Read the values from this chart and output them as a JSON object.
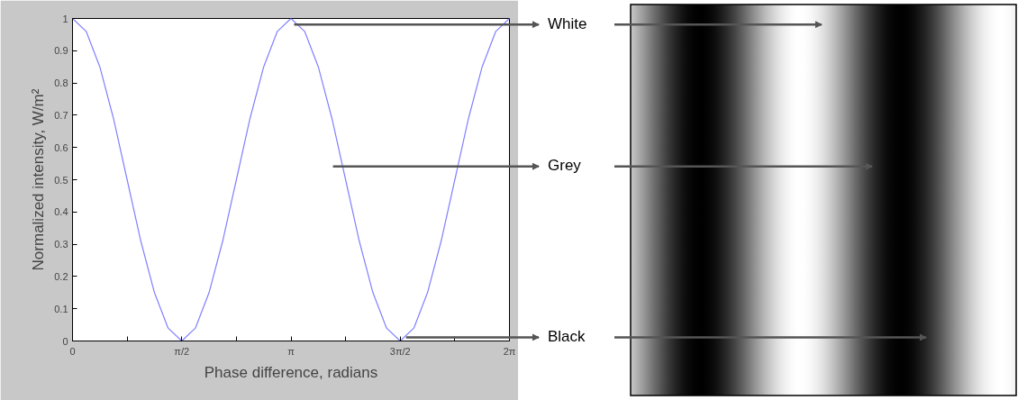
{
  "chart_data": {
    "type": "line",
    "xlabel": "Phase difference, radians",
    "ylabel": "Normalized intensity, W/m²",
    "x": [
      0,
      0.1963,
      0.3927,
      0.589,
      0.7854,
      0.9817,
      1.1781,
      1.3744,
      1.5708,
      1.7671,
      1.9635,
      2.1598,
      2.3562,
      2.5525,
      2.7489,
      2.9452,
      3.1416,
      3.3379,
      3.5343,
      3.7306,
      3.927,
      4.1233,
      4.3197,
      4.516,
      4.7124,
      4.9087,
      5.1051,
      5.3014,
      5.4978,
      5.6941,
      5.8905,
      6.0868,
      6.2832
    ],
    "series": [
      {
        "color": "#8080ff",
        "values": [
          1,
          0.96,
          0.85,
          0.69,
          0.5,
          0.31,
          0.15,
          0.04,
          0,
          0.04,
          0.15,
          0.31,
          0.5,
          0.69,
          0.85,
          0.96,
          1,
          0.96,
          0.85,
          0.69,
          0.5,
          0.31,
          0.15,
          0.04,
          0,
          0.04,
          0.15,
          0.31,
          0.5,
          0.69,
          0.85,
          0.96,
          1
        ]
      }
    ],
    "xlim": [
      0,
      6.2832
    ],
    "xticks": [
      0,
      {
        "value": 0.7854,
        "label": null
      },
      {
        "value": 1.5708,
        "label": "π/2"
      },
      {
        "value": 2.3562,
        "label": null
      },
      {
        "value": 3.1416,
        "label": "π"
      },
      {
        "value": 3.927,
        "label": null
      },
      {
        "value": 4.7124,
        "label": "3π/2"
      },
      {
        "value": 5.4978,
        "label": null
      },
      {
        "value": 6.2832,
        "label": "2π"
      }
    ],
    "ylim": [
      0,
      1
    ],
    "yticks": [
      0,
      0.1,
      0.2,
      0.3,
      0.4,
      0.5,
      0.6,
      0.7,
      0.8,
      0.9,
      1
    ],
    "grid": false,
    "annotations": [
      "White",
      "Grey",
      "Black"
    ]
  }
}
